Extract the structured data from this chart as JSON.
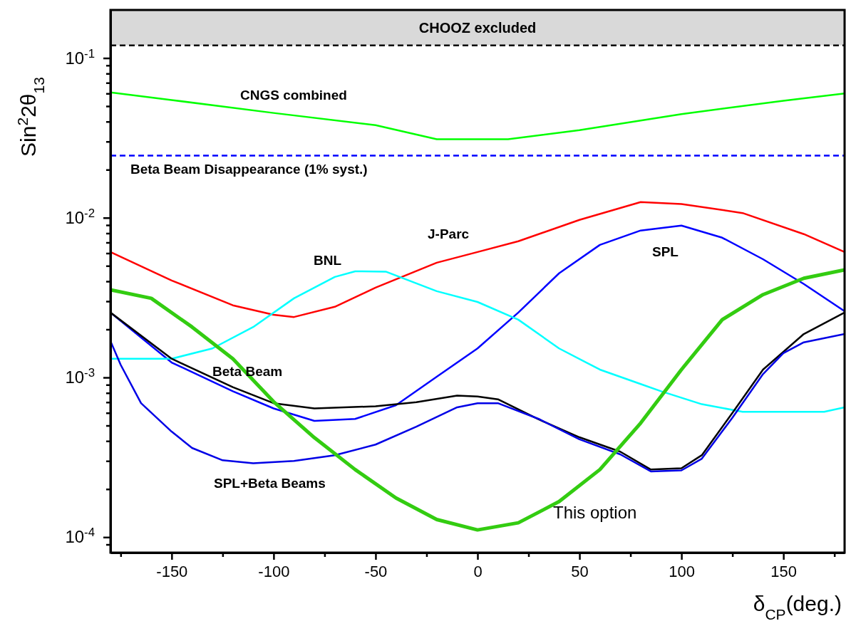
{
  "chart_data": {
    "type": "line",
    "xlabel": "δ$_{CP}$(deg.)",
    "ylabel": "Sin$^{2}$2θ$_{13}$",
    "log": "y",
    "grid": false,
    "xlim": [
      -180,
      180
    ],
    "ylim": [
      8e-05,
      0.2
    ],
    "xticks": [
      {
        "value": -175,
        "label": null
      },
      -150,
      {
        "value": -125,
        "label": null
      },
      -100,
      {
        "value": -75,
        "label": null
      },
      -50,
      {
        "value": -25,
        "label": null
      },
      0,
      {
        "value": 25,
        "label": null
      },
      50,
      {
        "value": 75,
        "label": null
      },
      100,
      {
        "value": 125,
        "label": null
      },
      150,
      {
        "value": 175,
        "label": null
      }
    ],
    "yticks": [
      {
        "value": 9e-05,
        "label": null
      },
      {
        "value": 0.0001,
        "label": "10$^{-4}$"
      },
      {
        "value": 0.0002,
        "label": null
      },
      {
        "value": 0.0003,
        "label": null
      },
      {
        "value": 0.0004,
        "label": null
      },
      {
        "value": 0.0005,
        "label": null
      },
      {
        "value": 0.0006,
        "label": null
      },
      {
        "value": 0.0007,
        "label": null
      },
      {
        "value": 0.0008,
        "label": null
      },
      {
        "value": 0.0009,
        "label": null
      },
      {
        "value": 0.001,
        "label": "10$^{-3}$"
      },
      {
        "value": 0.002,
        "label": null
      },
      {
        "value": 0.003,
        "label": null
      },
      {
        "value": 0.004,
        "label": null
      },
      {
        "value": 0.005,
        "label": null
      },
      {
        "value": 0.006,
        "label": null
      },
      {
        "value": 0.007,
        "label": null
      },
      {
        "value": 0.008,
        "label": null
      },
      {
        "value": 0.009,
        "label": null
      },
      {
        "value": 0.01,
        "label": "10$^{-2}$"
      },
      {
        "value": 0.02,
        "label": null
      },
      {
        "value": 0.03,
        "label": null
      },
      {
        "value": 0.04,
        "label": null
      },
      {
        "value": 0.05,
        "label": null
      },
      {
        "value": 0.06,
        "label": null
      },
      {
        "value": 0.07,
        "label": null
      },
      {
        "value": 0.08,
        "label": null
      },
      {
        "value": 0.09,
        "label": null
      },
      {
        "value": 0.1,
        "label": "10$^{-1}$"
      }
    ],
    "bands": [
      {
        "axis": "y",
        "from": 0.12,
        "to": 0.2,
        "label": "CHOOZ excluded",
        "color": "#d9d9d9"
      }
    ],
    "ref_lines": [
      {
        "axis": "y",
        "value": 0.12,
        "color": "#000000",
        "line_style": "dashed"
      },
      {
        "axis": "y",
        "value": 0.0245,
        "label": "Beta Beam Disappearance (1% syst.)",
        "color": "#0000ff",
        "line_style": "dashed"
      }
    ],
    "series": [
      {
        "color": "#00ff00",
        "x": [
          -180,
          -150,
          -100,
          -50,
          -20,
          15,
          50,
          100,
          150,
          180
        ],
        "values": [
          0.061,
          0.0546,
          0.0453,
          0.038,
          0.031,
          0.031,
          0.0354,
          0.0446,
          0.054,
          0.06
        ]
      },
      {
        "color": "#ff0000",
        "x": [
          -180,
          -150,
          -120,
          -100,
          -90,
          -70,
          -50,
          -20,
          0,
          20,
          50,
          80,
          100,
          130,
          160,
          180
        ],
        "values": [
          0.0061,
          0.00405,
          0.00283,
          0.00247,
          0.00239,
          0.00277,
          0.00365,
          0.00523,
          0.0061,
          0.00713,
          0.0097,
          0.01254,
          0.0122,
          0.0107,
          0.0079,
          0.0061
        ]
      },
      {
        "color": "#0000ff",
        "x": [
          -180,
          -150,
          -120,
          -100,
          -80,
          -60,
          -40,
          -20,
          0,
          20,
          40,
          60,
          80,
          100,
          120,
          140,
          160,
          180
        ],
        "values": [
          0.00255,
          0.00124,
          0.00082,
          0.00064,
          0.000535,
          0.00055,
          0.00067,
          0.00101,
          0.00152,
          0.00255,
          0.00449,
          0.00676,
          0.00832,
          0.00893,
          0.0075,
          0.0055,
          0.00385,
          0.0026
        ]
      },
      {
        "color": "#00ffff",
        "x": [
          -180,
          -150,
          -130,
          -110,
          -90,
          -70,
          -60,
          -45,
          -20,
          0,
          20,
          40,
          60,
          80,
          90,
          110,
          130,
          150,
          170,
          180
        ],
        "values": [
          0.00131,
          0.00131,
          0.00152,
          0.00207,
          0.00313,
          0.00426,
          0.00462,
          0.0046,
          0.00347,
          0.00297,
          0.0023,
          0.00152,
          0.00112,
          0.00091,
          0.00082,
          0.00068,
          0.00061,
          0.00061,
          0.00061,
          0.00065
        ]
      },
      {
        "color": "#000000",
        "x": [
          -180,
          -150,
          -120,
          -100,
          -80,
          -50,
          -30,
          -10,
          0,
          10,
          30,
          50,
          70,
          85,
          100,
          110,
          125,
          140,
          160,
          180
        ],
        "values": [
          0.00255,
          0.00131,
          0.00087,
          0.00069,
          0.00064,
          0.00066,
          0.0007,
          0.00077,
          0.00076,
          0.00073,
          0.000546,
          0.000422,
          0.000343,
          0.000265,
          0.00027,
          0.000326,
          0.0006,
          0.00112,
          0.00187,
          0.00255
        ]
      },
      {
        "color": "#0000e6",
        "x": [
          -180,
          -175,
          -165,
          -150,
          -140,
          -125,
          -110,
          -90,
          -70,
          -50,
          -30,
          -10,
          0,
          10,
          30,
          50,
          70,
          85,
          100,
          110,
          125,
          140,
          150,
          160,
          180
        ],
        "values": [
          0.00169,
          0.0012,
          0.00069,
          0.000458,
          0.000362,
          0.000303,
          0.00029,
          0.0003,
          0.000326,
          0.00038,
          0.000492,
          0.00065,
          0.00069,
          0.00069,
          0.00055,
          0.00041,
          0.00033,
          0.000258,
          0.000262,
          0.00031,
          0.00056,
          0.00105,
          0.00142,
          0.00166,
          0.00187
        ]
      },
      {
        "color": "#33cc11",
        "x": [
          -180,
          -160,
          -140,
          -120,
          -100,
          -80,
          -60,
          -40,
          -20,
          0,
          20,
          40,
          60,
          80,
          100,
          120,
          140,
          160,
          180
        ],
        "values": [
          0.00354,
          0.00313,
          0.00207,
          0.00131,
          0.000705,
          0.00042,
          0.000265,
          0.000176,
          0.000129,
          0.000111,
          0.000123,
          0.000167,
          0.000265,
          0.000518,
          0.00112,
          0.0023,
          0.0033,
          0.00418,
          0.00472
        ]
      }
    ],
    "annotations": [
      "CNGS combined",
      "J-Parc",
      "BNL",
      "SPL",
      "Beta Beam",
      "SPL+Beta Beams",
      "This option"
    ]
  }
}
